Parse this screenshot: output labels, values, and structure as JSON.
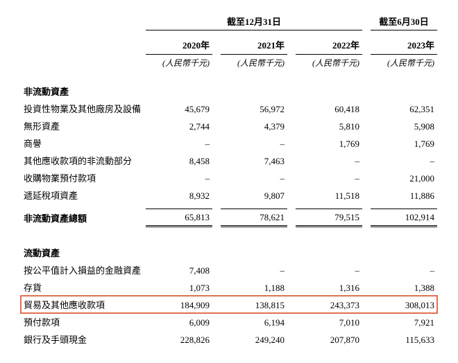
{
  "headers": {
    "group1": "截至12月31日",
    "group2": "截至6月30日",
    "y2020": "2020年",
    "y2021": "2021年",
    "y2022": "2022年",
    "y2023": "2023年",
    "unit": "(人民幣千元)"
  },
  "sections": {
    "noncurrent": "非流動資產",
    "noncurrent_total": "非流動資產總額",
    "current": "流動資產"
  },
  "rows": {
    "r1": {
      "label": "投資性物業及其他廠房及設備",
      "c1": "45,679",
      "c2": "56,972",
      "c3": "60,418",
      "c4": "62,351"
    },
    "r2": {
      "label": "無形資產",
      "c1": "2,744",
      "c2": "4,379",
      "c3": "5,810",
      "c4": "5,908"
    },
    "r3": {
      "label": "商譽",
      "c1": "–",
      "c2": "–",
      "c3": "1,769",
      "c4": "1,769"
    },
    "r4": {
      "label": "其他應收款項的非流動部分",
      "c1": "8,458",
      "c2": "7,463",
      "c3": "–",
      "c4": "–"
    },
    "r5": {
      "label": "收購物業預付款項",
      "c1": "–",
      "c2": "–",
      "c3": "–",
      "c4": "21,000"
    },
    "r6": {
      "label": "遞延稅項資產",
      "c1": "8,932",
      "c2": "9,807",
      "c3": "11,518",
      "c4": "11,886"
    },
    "rt": {
      "c1": "65,813",
      "c2": "78,621",
      "c3": "79,515",
      "c4": "102,914"
    },
    "c1": {
      "label": "按公平值計入損益的金融資產",
      "c1": "7,408",
      "c2": "–",
      "c3": "–",
      "c4": "–"
    },
    "c2": {
      "label": "存貨",
      "c1": "1,073",
      "c2": "1,188",
      "c3": "1,316",
      "c4": "1,388"
    },
    "c3": {
      "label": "貿易及其他應收款項",
      "c1": "184,909",
      "c2": "138,815",
      "c3": "243,373",
      "c4": "308,013"
    },
    "c4": {
      "label": "預付款項",
      "c1": "6,009",
      "c2": "6,194",
      "c3": "7,010",
      "c4": "7,921"
    },
    "c5": {
      "label": "銀行及手頭現金",
      "c1": "228,826",
      "c2": "249,240",
      "c3": "207,870",
      "c4": "115,633"
    }
  }
}
